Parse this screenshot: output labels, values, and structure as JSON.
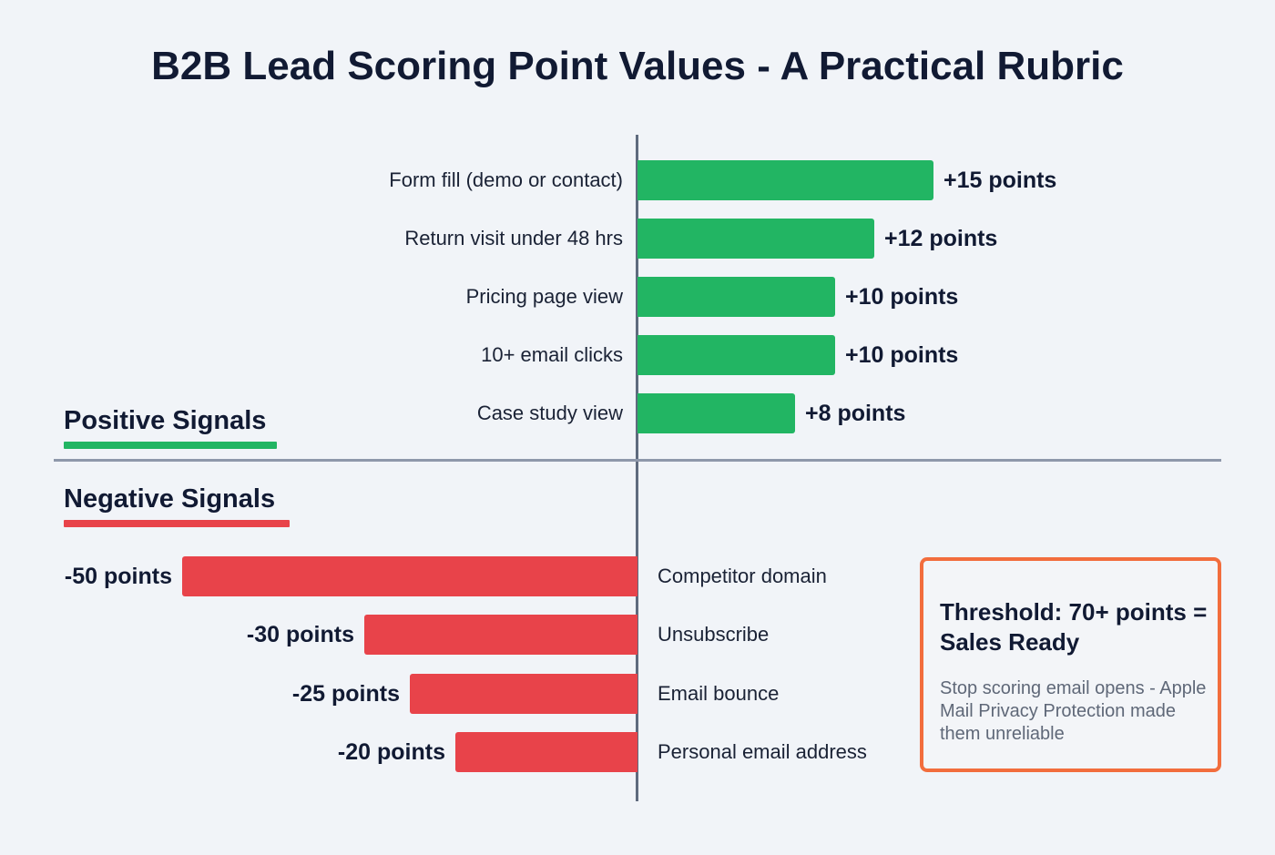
{
  "title": "B2B Lead Scoring Point Values - A Practical Rubric",
  "sections": {
    "positive": {
      "label": "Positive Signals",
      "color": "#22b563"
    },
    "negative": {
      "label": "Negative Signals",
      "color": "#e8434a"
    }
  },
  "positive_rows": [
    {
      "label": "Form fill (demo or contact)",
      "value": 15,
      "value_label": "+15 points"
    },
    {
      "label": "Return visit under 48 hrs",
      "value": 12,
      "value_label": "+12 points"
    },
    {
      "label": "Pricing page view",
      "value": 10,
      "value_label": "+10 points"
    },
    {
      "label": "10+ email clicks",
      "value": 10,
      "value_label": "+10 points"
    },
    {
      "label": "Case study view",
      "value": 8,
      "value_label": "+8 points"
    }
  ],
  "negative_rows": [
    {
      "label": "Competitor domain",
      "value": -50,
      "value_label": "-50 points"
    },
    {
      "label": "Unsubscribe",
      "value": -30,
      "value_label": "-30 points"
    },
    {
      "label": "Email bounce",
      "value": -25,
      "value_label": "-25 points"
    },
    {
      "label": "Personal email address",
      "value": -20,
      "value_label": "-20 points"
    }
  ],
  "threshold_box": {
    "title": "Threshold: 70+ points = Sales Ready",
    "note": "Stop scoring email opens - Apple Mail Privacy Protection made them unreliable",
    "border_color": "#f26d3d"
  },
  "chart_data": {
    "type": "bar",
    "orientation": "horizontal",
    "title": "B2B Lead Scoring Point Values - A Practical Rubric",
    "xlabel": "",
    "ylabel": "",
    "grid": false,
    "legend": null,
    "series": [
      {
        "name": "Positive Signals",
        "color": "#22b563",
        "categories": [
          "Form fill (demo or contact)",
          "Return visit under 48 hrs",
          "Pricing page view",
          "10+ email clicks",
          "Case study view"
        ],
        "values": [
          15,
          12,
          10,
          10,
          8
        ]
      },
      {
        "name": "Negative Signals",
        "color": "#e8434a",
        "categories": [
          "Competitor domain",
          "Unsubscribe",
          "Email bounce",
          "Personal email address"
        ],
        "values": [
          -50,
          -30,
          -25,
          -20
        ]
      }
    ],
    "annotations": [
      "Threshold: 70+ points = Sales Ready",
      "Stop scoring email opens - Apple Mail Privacy Protection made them unreliable"
    ]
  }
}
